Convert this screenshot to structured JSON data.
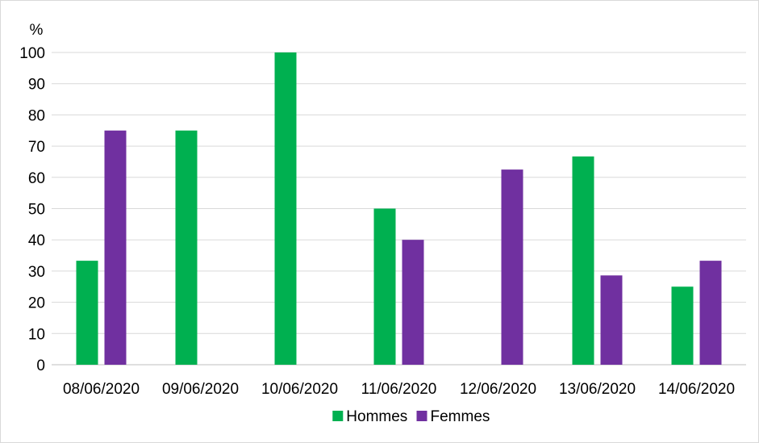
{
  "chart_data": {
    "type": "bar",
    "title": "",
    "xlabel": "",
    "ylabel": "%",
    "ylim": [
      0,
      100
    ],
    "yticks": [
      0,
      10,
      20,
      30,
      40,
      50,
      60,
      70,
      80,
      90,
      100
    ],
    "grid": true,
    "legend_position": "bottom",
    "categories": [
      "08/06/2020",
      "09/06/2020",
      "10/06/2020",
      "11/06/2020",
      "12/06/2020",
      "13/06/2020",
      "14/06/2020"
    ],
    "series": [
      {
        "name": "Hommes",
        "color": "#00b050",
        "values": [
          33.3,
          75,
          100,
          50,
          0,
          66.7,
          25
        ]
      },
      {
        "name": "Femmes",
        "color": "#7030a0",
        "values": [
          75,
          0,
          0,
          40,
          62.5,
          28.6,
          33.3
        ]
      }
    ]
  }
}
